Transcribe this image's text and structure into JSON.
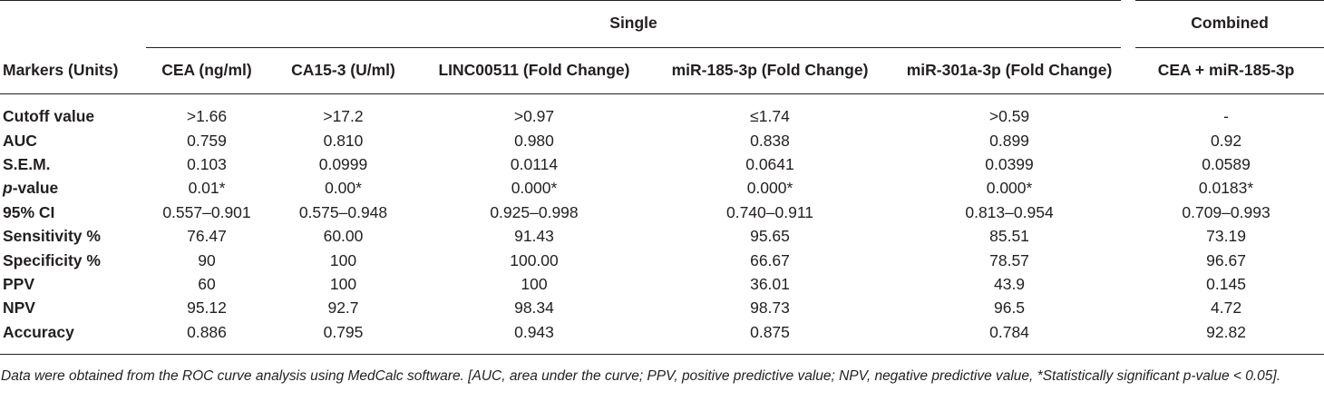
{
  "table": {
    "group_headers": {
      "single": "Single",
      "combined": "Combined"
    },
    "row_header_label": "Markers (Units)",
    "columns": [
      "CEA (ng/ml)",
      "CA15-3 (U/ml)",
      "LINC00511 (Fold Change)",
      "miR-185-3p (Fold Change)",
      "miR-301a-3p (Fold Change)",
      "CEA + miR-185-3p"
    ],
    "rows": [
      {
        "label_prefix": "",
        "label_suffix": "Cutoff value",
        "values": [
          ">1.66",
          ">17.2",
          ">0.97",
          "≤1.74",
          ">0.59",
          "-"
        ]
      },
      {
        "label_prefix": "",
        "label_suffix": "AUC",
        "values": [
          "0.759",
          "0.810",
          "0.980",
          "0.838",
          "0.899",
          "0.92"
        ]
      },
      {
        "label_prefix": "",
        "label_suffix": "S.E.M.",
        "values": [
          "0.103",
          "0.0999",
          "0.0114",
          "0.0641",
          "0.0399",
          "0.0589"
        ]
      },
      {
        "label_prefix": "p",
        "label_suffix": "-value",
        "values": [
          "0.01*",
          "0.00*",
          "0.000*",
          "0.000*",
          "0.000*",
          "0.0183*"
        ]
      },
      {
        "label_prefix": "",
        "label_suffix": "95% CI",
        "values": [
          "0.557–0.901",
          "0.575–0.948",
          "0.925–0.998",
          "0.740–0.911",
          "0.813–0.954",
          "0.709–0.993"
        ]
      },
      {
        "label_prefix": "",
        "label_suffix": "Sensitivity %",
        "values": [
          "76.47",
          "60.00",
          "91.43",
          "95.65",
          "85.51",
          "73.19"
        ]
      },
      {
        "label_prefix": "",
        "label_suffix": "Specificity %",
        "values": [
          "90",
          "100",
          "100.00",
          "66.67",
          "78.57",
          "96.67"
        ]
      },
      {
        "label_prefix": "",
        "label_suffix": "PPV",
        "values": [
          "60",
          "100",
          "100",
          "36.01",
          "43.9",
          "0.145"
        ]
      },
      {
        "label_prefix": "",
        "label_suffix": "NPV",
        "values": [
          "95.12",
          "92.7",
          "98.34",
          "98.73",
          "96.5",
          "4.72"
        ]
      },
      {
        "label_prefix": "",
        "label_suffix": "Accuracy",
        "values": [
          "0.886",
          "0.795",
          "0.943",
          "0.875",
          "0.784",
          "92.82"
        ]
      }
    ]
  },
  "caption": "Data were obtained from the ROC curve analysis using MedCalc software. [AUC, area under the curve; PPV, positive predictive value; NPV, negative predictive value, *Statistically significant p-value < 0.05]."
}
